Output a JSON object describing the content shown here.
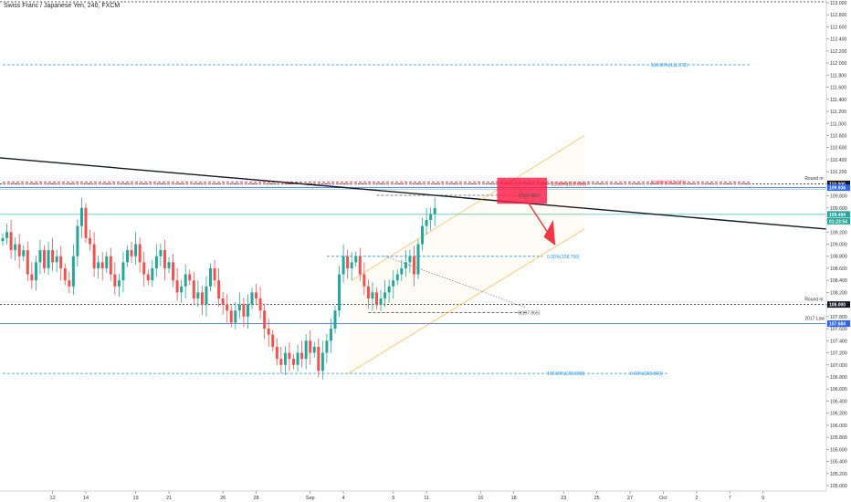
{
  "chart_data": {
    "type": "candlestick",
    "title": "Swiss Franc / Japanese Yen, 240, FXCM",
    "ylim": [
      105.0,
      113.0
    ],
    "y_ticks": [
      105.0,
      105.2,
      105.4,
      105.6,
      105.8,
      106.0,
      106.2,
      106.4,
      106.6,
      106.8,
      107.0,
      107.2,
      107.4,
      107.6,
      107.8,
      108.0,
      108.2,
      108.4,
      108.6,
      108.8,
      109.0,
      109.2,
      109.4,
      109.6,
      109.8,
      110.0,
      110.2,
      110.4,
      110.6,
      110.8,
      111.0,
      111.2,
      111.4,
      111.6,
      111.8,
      112.0,
      112.2,
      112.4,
      112.6,
      112.8,
      113.0
    ],
    "y_tick_labels": [
      "105.000",
      "105.200",
      "105.400",
      "105.600",
      "105.800",
      "106.000",
      "106.200",
      "106.400",
      "106.600",
      "106.800",
      "107.000",
      "107.200",
      "107.400",
      "107.600",
      "107.800",
      "108.000",
      "108.200",
      "108.400",
      "108.600",
      "108.800",
      "109.000",
      "109.200",
      "109.400",
      "109.600",
      "109.800",
      "110.000",
      "110.200",
      "110.400",
      "110.600",
      "110.800",
      "111.000",
      "111.200",
      "111.400",
      "111.600",
      "111.800",
      "112.000",
      "112.200",
      "112.400",
      "112.600",
      "112.800",
      "113.000"
    ],
    "x_ticks": [
      {
        "label": "12",
        "pos": 12
      },
      {
        "label": "14",
        "pos": 20
      },
      {
        "label": "19",
        "pos": 32
      },
      {
        "label": "21",
        "pos": 40
      },
      {
        "label": "26",
        "pos": 53
      },
      {
        "label": "28",
        "pos": 61
      },
      {
        "label": "Sep",
        "pos": 74
      },
      {
        "label": "4",
        "pos": 82
      },
      {
        "label": "9",
        "pos": 94
      },
      {
        "label": "11",
        "pos": 102
      },
      {
        "label": "16",
        "pos": 115
      },
      {
        "label": "18",
        "pos": 123
      },
      {
        "label": "23",
        "pos": 135
      },
      {
        "label": "25",
        "pos": 143
      },
      {
        "label": "27",
        "pos": 151
      },
      {
        "label": "Oct",
        "pos": 159
      },
      {
        "label": "2",
        "pos": 167
      },
      {
        "label": "7",
        "pos": 175
      },
      {
        "label": "9",
        "pos": 183
      }
    ],
    "closes": [
      109.1,
      109.2,
      108.9,
      109.0,
      108.8,
      108.9,
      108.5,
      108.4,
      108.7,
      108.9,
      108.6,
      108.9,
      108.7,
      108.8,
      108.6,
      108.4,
      108.3,
      108.8,
      109.3,
      109.6,
      109.1,
      109.0,
      108.6,
      108.7,
      108.6,
      108.8,
      108.5,
      108.3,
      108.4,
      108.7,
      108.9,
      108.8,
      109.0,
      108.7,
      108.5,
      108.4,
      108.6,
      108.8,
      108.9,
      108.6,
      108.7,
      108.4,
      108.2,
      108.3,
      108.5,
      108.4,
      108.1,
      108.2,
      108.0,
      108.3,
      108.6,
      108.4,
      108.1,
      108.0,
      107.9,
      107.7,
      107.9,
      108.0,
      107.8,
      108.0,
      108.2,
      108.1,
      107.9,
      107.6,
      107.5,
      107.3,
      107.1,
      107.0,
      107.2,
      107.1,
      107.0,
      107.2,
      107.1,
      107.4,
      107.2,
      107.3,
      106.9,
      107.2,
      107.4,
      107.6,
      107.9,
      108.5,
      108.8,
      108.6,
      108.7,
      108.8,
      108.5,
      108.3,
      108.1,
      108.2,
      108.0,
      108.1,
      108.2,
      108.3,
      108.4,
      108.5,
      108.6,
      108.7,
      108.8,
      108.5,
      109.0,
      109.3,
      109.4,
      109.5,
      109.6
    ],
    "price_axis_labels": [
      {
        "value": 110.0,
        "label": "110.000",
        "color": "#131722"
      },
      {
        "value": 109.936,
        "label": "109.936",
        "color": "#2962ff"
      },
      {
        "value": 109.494,
        "label": "109.494",
        "color": "#26a69a"
      },
      {
        "value": 109.38,
        "label": "01:23:54",
        "color": "#26a69a"
      },
      {
        "value": 108.0,
        "label": "108.000",
        "color": "#131722"
      },
      {
        "value": 107.684,
        "label": "107.684",
        "color": "#2962ff"
      }
    ],
    "horizontal_levels": [
      {
        "value": 111.972,
        "text": "100.00%(111.972)",
        "color": "#2196f3",
        "style": "dashed",
        "x0": 0,
        "x1": 180,
        "label_x": 156
      },
      {
        "value": 110.029,
        "text": "61.80%(110.029)",
        "color": "#f23645",
        "style": "dashed",
        "x0": 0,
        "x1": 180,
        "label_x": 156
      },
      {
        "value": 109.999,
        "text": "61.80%(109.999)",
        "color": "#f23645",
        "style": "dashed",
        "x0": 0,
        "x1": 180,
        "label_x": 132
      },
      {
        "value": 109.809,
        "text": "1(109.809)",
        "color": "#555555",
        "style": "dashed",
        "x0": 90,
        "x1": 128,
        "label_x": 124
      },
      {
        "value": 108.799,
        "text": "0.00%(108.799)",
        "color": "#2196f3",
        "style": "dashed",
        "x0": 78,
        "x1": 130,
        "label_x": 131
      },
      {
        "value": 107.865,
        "text": "0(107.865)",
        "color": "#555555",
        "style": "dashed",
        "x0": 88,
        "x1": 126,
        "label_x": 124
      },
      {
        "value": 106.858,
        "text": "100.00%(106.858)",
        "color": "#2196f3",
        "style": "dashed",
        "x0": 0,
        "x1": 160,
        "label_x": 131
      },
      {
        "value": 106.86,
        "text": "0.00%(106.860)",
        "color": "#2196f3",
        "style": "dashed",
        "x0": 0,
        "x1": 0,
        "label_x": 151
      }
    ],
    "annotations": [
      {
        "text": "Round nr.",
        "value": 110.05
      },
      {
        "text": "Round nr.",
        "value": 108.05
      },
      {
        "text": "2017 Low",
        "value": 107.73
      }
    ]
  }
}
